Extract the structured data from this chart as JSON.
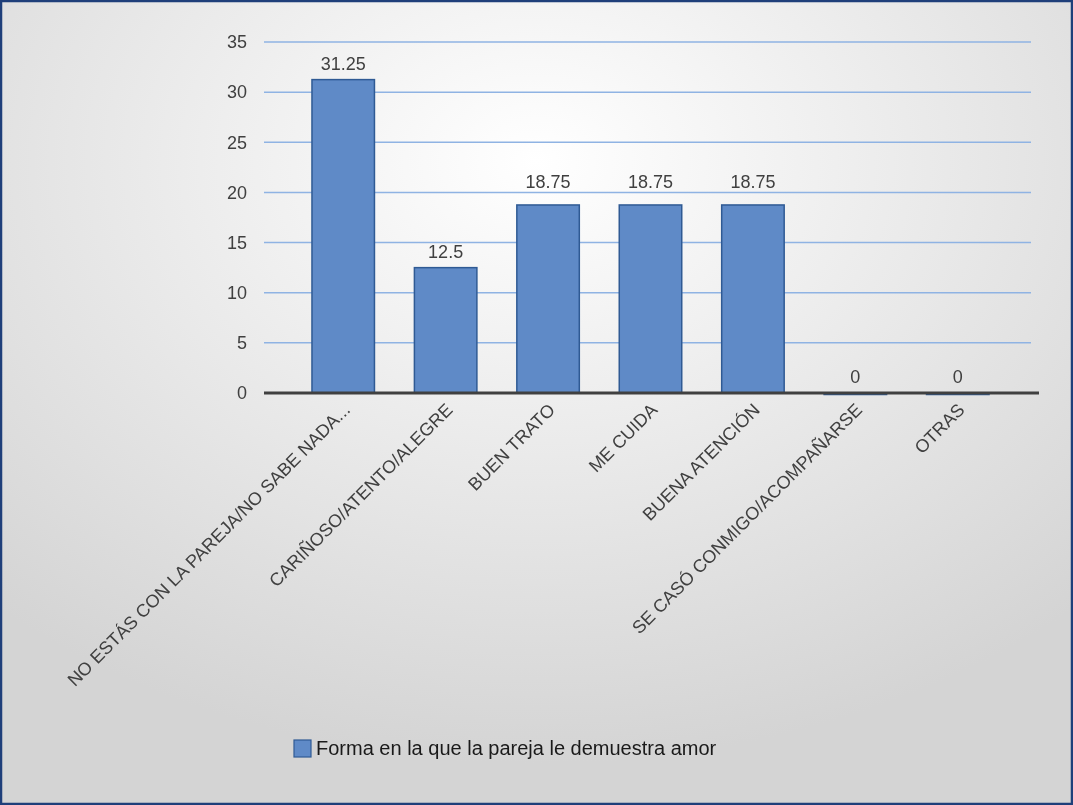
{
  "chart_data": {
    "type": "bar",
    "categories": [
      "NO ESTÁS CON LA PAREJA/NO SABE NADA...",
      "CARIÑOSO/ATENTO/ALEGRE",
      "BUEN TRATO",
      "ME CUIDA",
      "BUENA ATENCIÓN",
      "SE CASÓ CONMIGO/ACOMPAÑARSE",
      "OTRAS"
    ],
    "series": [
      {
        "name": "Forma en la que la pareja le demuestra amor",
        "color": "#5f8ac7",
        "values": [
          31.25,
          12.5,
          18.75,
          18.75,
          18.75,
          0,
          0
        ]
      }
    ],
    "ylim": [
      0,
      35
    ],
    "yticks": [
      0,
      5,
      10,
      15,
      20,
      25,
      30,
      35
    ],
    "grid": "y",
    "legend": "bottom",
    "data_labels": true
  }
}
